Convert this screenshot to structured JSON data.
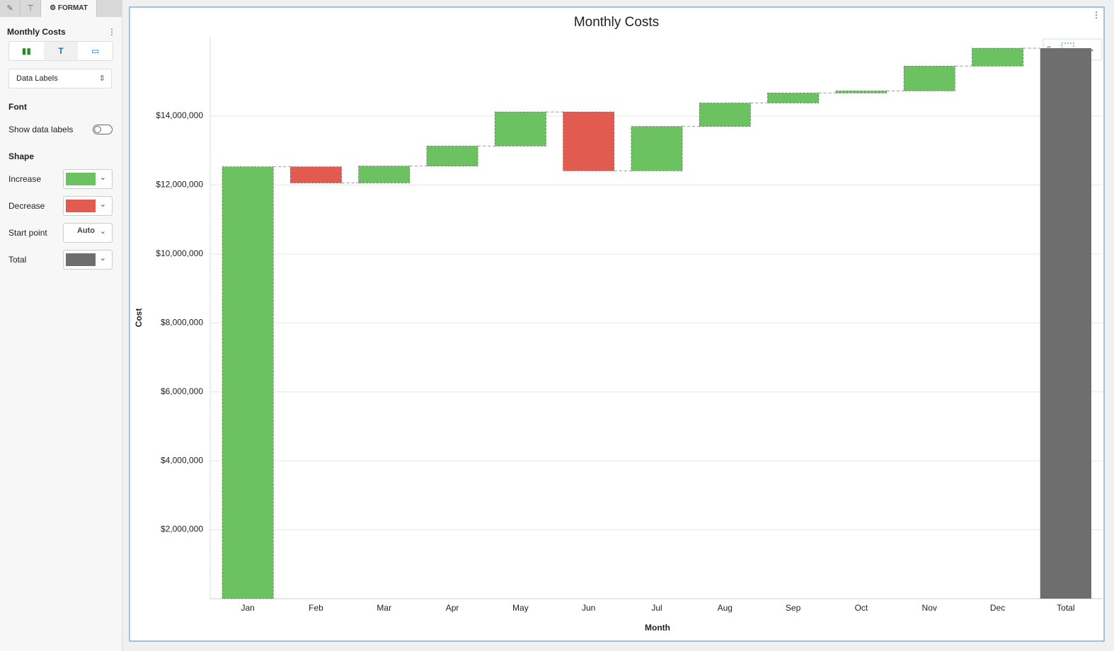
{
  "sidebar": {
    "tab": "FORMAT",
    "panel_title": "Monthly Costs",
    "section_select": "Data Labels",
    "font_heading": "Font",
    "show_labels": "Show data labels",
    "shape_heading": "Shape",
    "rows": [
      {
        "label": "Increase"
      },
      {
        "label": "Decrease"
      },
      {
        "label": "Start point",
        "value": "Auto"
      },
      {
        "label": "Total"
      }
    ]
  },
  "chart_data": {
    "type": "waterfall",
    "title": "Monthly Costs",
    "x_label": "Month",
    "y_label": "Cost",
    "categories": [
      "Jan",
      "Feb",
      "Mar",
      "Apr",
      "May",
      "Jun",
      "Jul",
      "Aug",
      "Sep",
      "Oct",
      "Nov",
      "Dec",
      "Total"
    ],
    "values": [
      12530000,
      -470000,
      490000,
      580000,
      990000,
      -1710000,
      1290000,
      680000,
      290000,
      60000,
      720000,
      520000,
      15970000
    ],
    "colors": {
      "increase": "#6cc260",
      "decrease": "#e15b50",
      "total": "#6e6e6e"
    },
    "ylim": [
      0,
      16300000
    ],
    "yticks": [
      {
        "value": 2000000,
        "label": "$2,000,000"
      },
      {
        "value": 4000000,
        "label": "$4,000,000"
      },
      {
        "value": 6000000,
        "label": "$6,000,000"
      },
      {
        "value": 8000000,
        "label": "$8,000,000"
      },
      {
        "value": 10000000,
        "label": "$10,000,000"
      },
      {
        "value": 12000000,
        "label": "$12,000,000"
      },
      {
        "value": 14000000,
        "label": "$14,000,000"
      }
    ],
    "grid": true
  }
}
